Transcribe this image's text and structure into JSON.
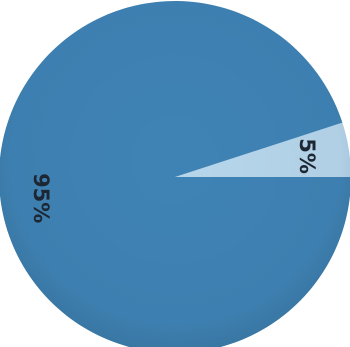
{
  "chart_data": {
    "type": "pie",
    "title": "",
    "slices": [
      {
        "label": "95%",
        "value": 95,
        "color": "#3f83b5"
      },
      {
        "label": "5%",
        "value": 5,
        "color": "#b6d6ec"
      }
    ]
  }
}
